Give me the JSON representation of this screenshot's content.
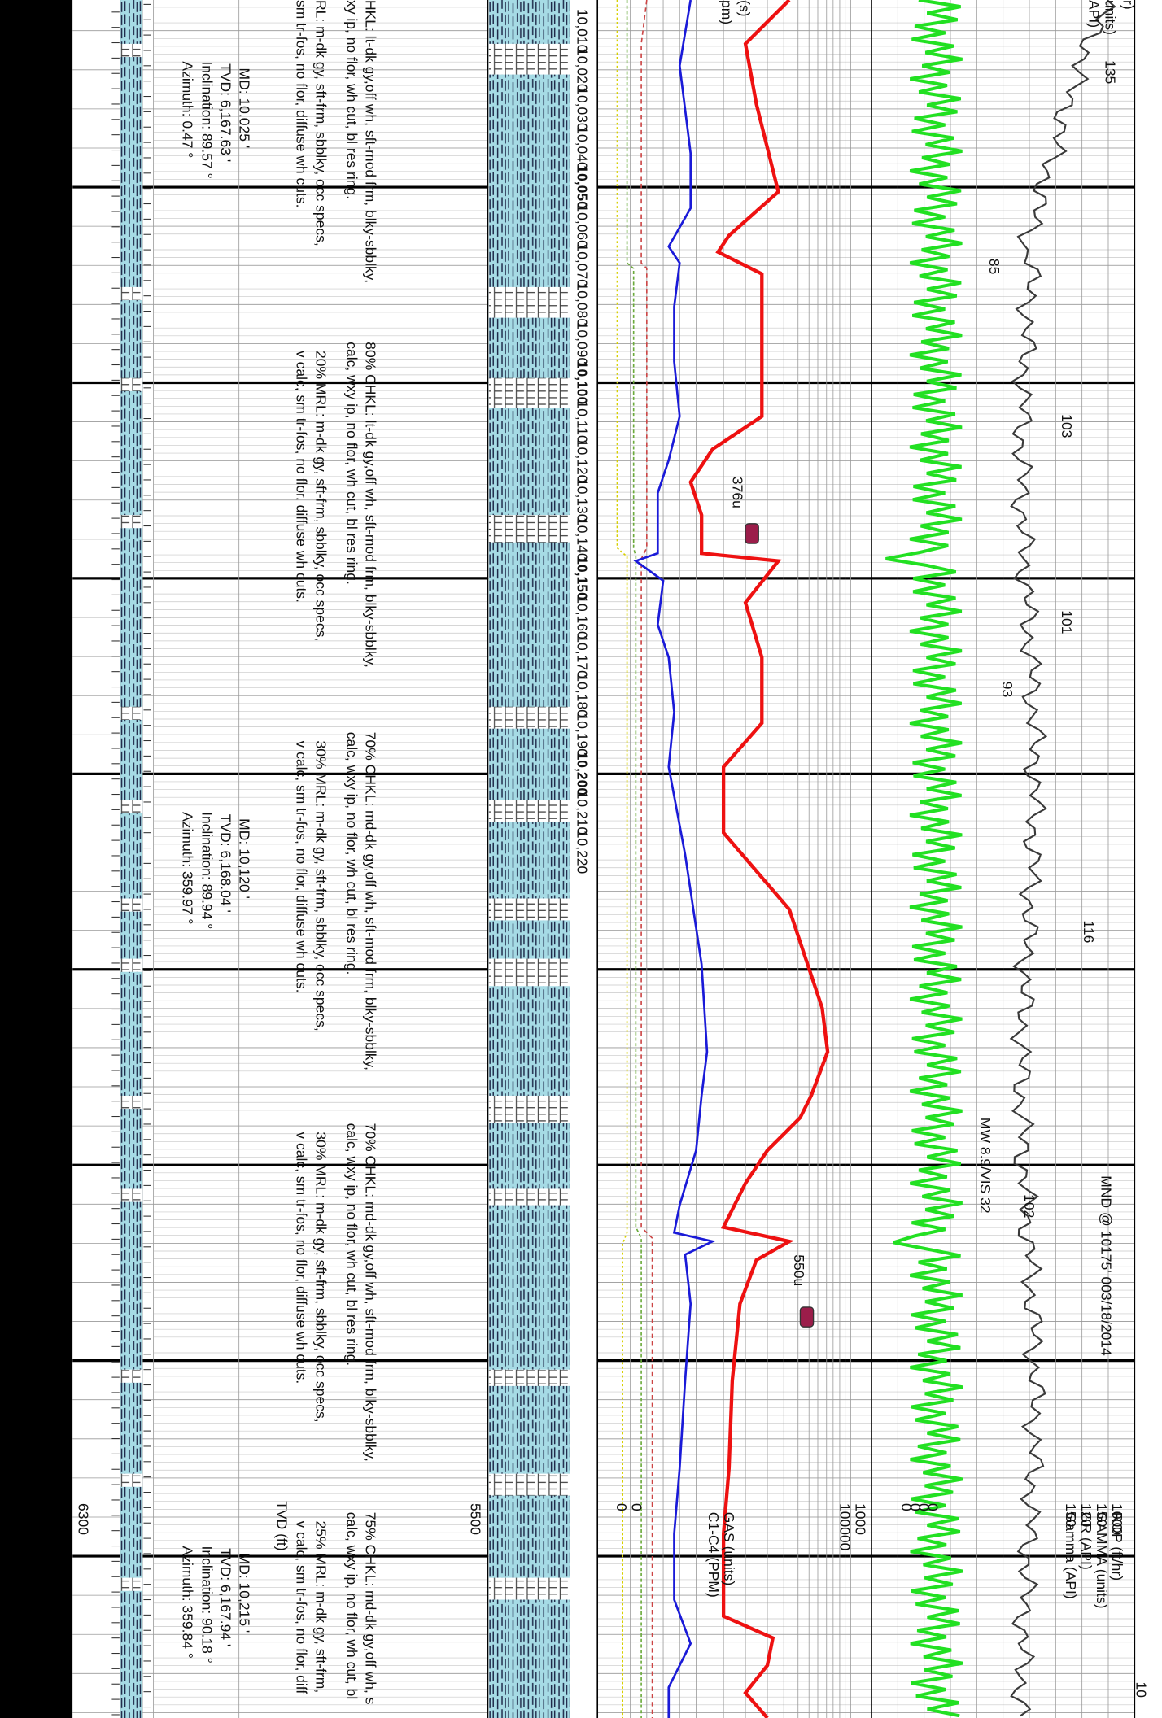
{
  "depth_labels": [
    "10,010",
    "10,020",
    "10,030",
    "10,040",
    "10,050",
    "10,060",
    "10,070",
    "10,080",
    "10,090",
    "10,100",
    "10,110",
    "10,120",
    "10,130",
    "10,140",
    "10,150",
    "10,160",
    "10,170",
    "10,180",
    "10,190",
    "10,200",
    "10,210",
    "10,220"
  ],
  "descriptions": [
    [
      "HKL: lt-dk gy,off wh, sft-mod frm, blky-sbblky,",
      "xy ip, no flor, wh cut, bl res ring.",
      "RL: m-dk gy, sft-frm, sbblky, occ specs,",
      "sm tr-fos, no flor, diffuse wh cuts."
    ],
    [
      "80% CHKL: lt-dk gy,off wh, sft-mod frm, blky-sbblky,",
      "calc, wxy ip, no flor, wh cut, bl res ring.",
      "20% MRL: m-dk gy, sft-frm, sbblky, occ specs,",
      "v calc, sm tr-fos, no flor, diffuse wh cuts."
    ],
    [
      "70% CHKL: md-dk gy,off wh, sft-mod frm, blky-sbblky,",
      "calc, wxy ip, no flor, wh cut, bl res ring.",
      "30% MRL: m-dk gy, sft-frm, sbblky, occ specs,",
      "v calc, sm tr-fos, no flor, diffuse wh cuts."
    ],
    [
      "70% CHKL: md-dk gy,off wh, sft-mod frm, blky-sbblky,",
      "calc, wxy ip, no flor, wh cut, bl res ring.",
      "30% MRL: m-dk gy, sft-frm, sbblky, occ specs,",
      "v calc, sm tr-fos, no flor, diffuse wh cuts."
    ],
    [
      "75% CHKL: md-dk gy,off wh, s",
      "calc, wxy ip, no flor, wh cut, bl",
      "25% MRL: m-dk gy, sft-frm,",
      "v calc, sm tr-fos, no flor, diff"
    ]
  ],
  "surveys": [
    [
      "MD: 10,025 '",
      "TVD: 6,167.63 '",
      "Inclination: 89.57 °",
      "Azimuth: 0.47 °"
    ],
    [
      "MD: 10,120 '",
      "TVD: 6,168.04 '",
      "Inclination: 89.94 °",
      "Azimuth: 359.97 °"
    ],
    [
      "MD: 10,215 '",
      "TVD: 6,167.94 '",
      "Inclination: 90.18 °",
      "Azimuth: 359.84 °"
    ]
  ],
  "tvd_axis": {
    "title": "TVD (ft)",
    "labels": [
      "6300",
      "5500"
    ]
  },
  "annotations": {
    "gamma": [
      "135",
      "85",
      "103",
      "101",
      "93",
      "116",
      "102",
      "10"
    ],
    "mud": "MW 8.9/VIS 32",
    "mnd": "MND @ 10175' 003/18/2014",
    "gas": [
      "376u",
      "550u"
    ]
  },
  "header_top": [
    "r)",
    "units)",
    "API)",
    "(s)",
    "pm)"
  ],
  "header": {
    "rop": {
      "title": "ROP (ft/hr)",
      "max": "1000",
      "min": "0"
    },
    "gamma_units": {
      "title": "GAMMA (units)",
      "max": "150",
      "min": "0"
    },
    "gr": {
      "title": "GR (API)",
      "max": "120",
      "min": "0"
    },
    "gamma_api": {
      "title": "Gamma (API)",
      "max": "150",
      "min": "0"
    },
    "gas": {
      "title": "GAS (units)",
      "max": "1000",
      "min": "0"
    },
    "c1c4": {
      "title": "C1-C4 (PPM)",
      "max": "100000",
      "min": "0"
    }
  }
}
